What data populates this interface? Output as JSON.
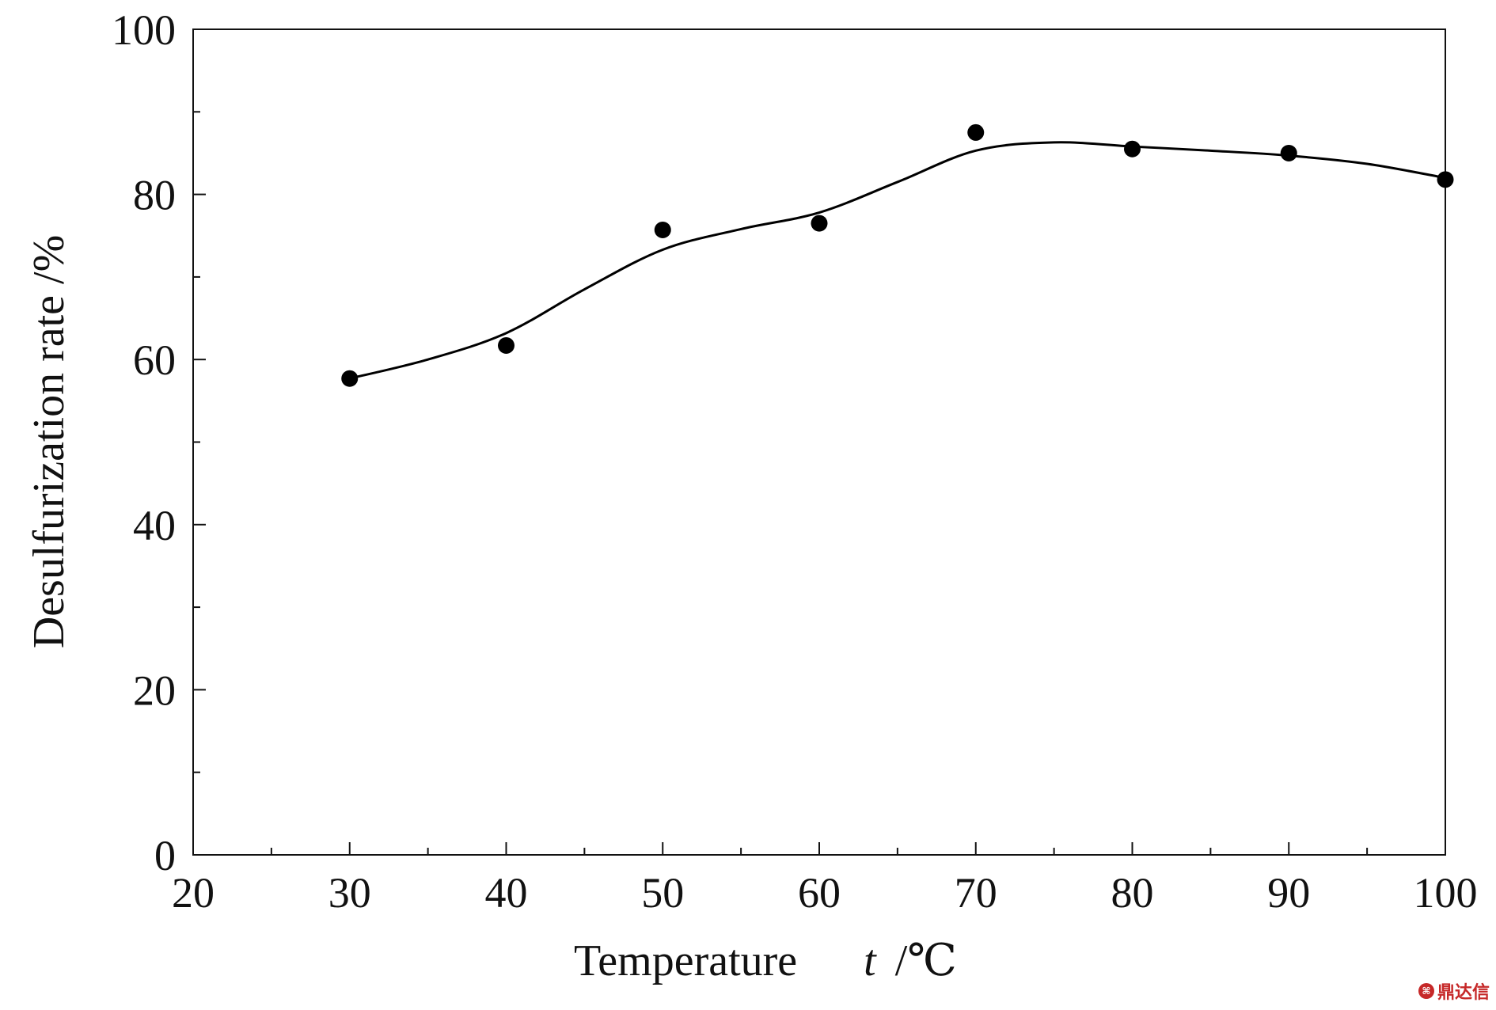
{
  "chart_data": {
    "type": "scatter",
    "title": "",
    "xlabel": "Temperature",
    "xlabel_var": "t",
    "xlabel_unit": "/℃",
    "ylabel": "Desulfurization rate /%",
    "xlim": [
      20,
      100
    ],
    "ylim": [
      0,
      100
    ],
    "xticks": [
      20,
      30,
      40,
      50,
      60,
      70,
      80,
      90,
      100
    ],
    "yticks": [
      0,
      20,
      40,
      60,
      80,
      100
    ],
    "x_minor_step": 5,
    "y_minor_step": 10,
    "grid": false,
    "series": [
      {
        "kind": "points",
        "x": [
          30,
          40,
          50,
          60,
          70,
          80,
          90,
          100
        ],
        "y": [
          57.7,
          61.7,
          75.7,
          76.5,
          87.5,
          85.5,
          85.0,
          81.8
        ]
      },
      {
        "kind": "fit-curve",
        "x": [
          30,
          35,
          40,
          45,
          50,
          55,
          60,
          65,
          70,
          75,
          80,
          85,
          90,
          95,
          100
        ],
        "y": [
          57.7,
          60.0,
          63.2,
          68.5,
          73.3,
          75.8,
          77.8,
          81.5,
          85.3,
          86.3,
          85.8,
          85.3,
          84.7,
          83.7,
          82.0
        ]
      }
    ],
    "colors": {
      "axis": "#111111",
      "marker": "#000000",
      "curve": "#000000"
    }
  },
  "watermark": {
    "text": "鼎达信"
  }
}
